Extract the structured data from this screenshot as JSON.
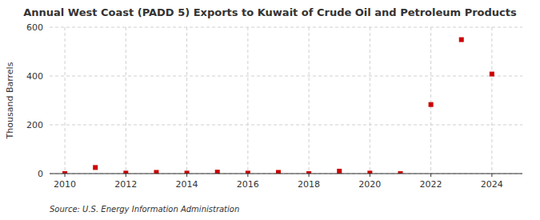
{
  "chart_data": {
    "type": "scatter",
    "title": "Annual West Coast (PADD 5) Exports to Kuwait of Crude Oil and Petroleum Products",
    "ylabel": "Thousand Barrels",
    "source": "Source: U.S. Energy Information Administration",
    "x": [
      2010,
      2011,
      2012,
      2013,
      2014,
      2015,
      2016,
      2017,
      2018,
      2019,
      2020,
      2021,
      2022,
      2023,
      2024
    ],
    "values": [
      0,
      25,
      2,
      5,
      2,
      6,
      2,
      5,
      0,
      10,
      2,
      0,
      283,
      549,
      408
    ],
    "color": "#cc0000",
    "marker": "square",
    "xlim": [
      2009.5,
      2025.0
    ],
    "ylim": [
      0,
      600
    ],
    "xticks": [
      2010,
      2012,
      2014,
      2016,
      2018,
      2020,
      2022,
      2024
    ],
    "yticks": [
      0,
      200,
      400,
      600
    ],
    "grid": true
  }
}
